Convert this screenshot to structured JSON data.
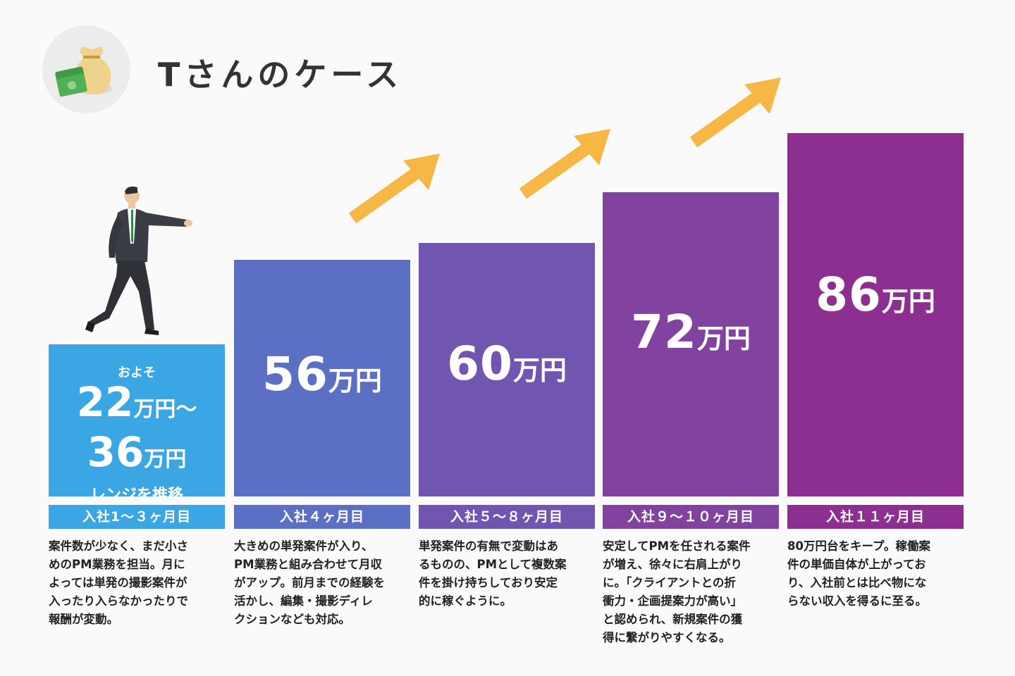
{
  "title": "Tさんのケース",
  "colors": {
    "accent_arrow": "#f7b745",
    "bar1": "#3aa6e4",
    "bar2": "#5b70c5",
    "bar3": "#7055b1",
    "bar4": "#8142a0",
    "bar5": "#8c2f90"
  },
  "icons": {
    "title_icon": "money-bag-icon",
    "character": "businessman-walking-illustration",
    "growth": "up-arrow-icon"
  },
  "chart_data": {
    "type": "bar",
    "title": "Tさんのケース",
    "unit": "万円",
    "categories": [
      "入社1〜３ヶ月目",
      "入社４ヶ月目",
      "入社５〜８ヶ月目",
      "入社９〜１０ヶ月目",
      "入社１１ヶ月目"
    ],
    "values": [
      36,
      56,
      60,
      72,
      86
    ],
    "range_first": {
      "min": 22,
      "max": 36
    },
    "ylim": [
      0,
      100
    ]
  },
  "bars": [
    {
      "label": "入社1〜３ヶ月目",
      "pre": "およそ",
      "line1_num": "22",
      "line1_unit": "万円〜",
      "line2_num": "36",
      "line2_unit": "万円",
      "post": "レンジを推移",
      "desc": "案件数が少なく、まだ小さ\nめのPM業務を担当。月に\nよっては単発の撮影案件が\n入ったり入らなかったりで\n報酬が変動。"
    },
    {
      "label": "入社４ヶ月目",
      "num": "56",
      "unit": "万円",
      "desc": "大きめの単発案件が入り、\nPM業務と組み合わせて月収\nがアップ。前月までの経験を\n活かし、編集・撮影ディレ\nクションなども対応。"
    },
    {
      "label": "入社５〜８ヶ月目",
      "num": "60",
      "unit": "万円",
      "desc": "単発案件の有無で変動はあ\nるものの、PMとして複数案\n件を掛け持ちしており安定\n的に稼ぐように。"
    },
    {
      "label": "入社９〜１０ヶ月目",
      "num": "72",
      "unit": "万円",
      "desc": "安定してPMを任される案件\nが増え、徐々に右肩上がり\nに。「クライアントとの折\n衝力・企画提案力が高い」\nと認められ、新規案件の獲\n得に繋がりやすくなる。"
    },
    {
      "label": "入社１１ヶ月目",
      "num": "86",
      "unit": "万円",
      "desc": "80万円台をキープ。稼働案\n件の単価自体が上がってお\nり、入社前とは比べ物にな\nらない収入を得るに至る。"
    }
  ]
}
